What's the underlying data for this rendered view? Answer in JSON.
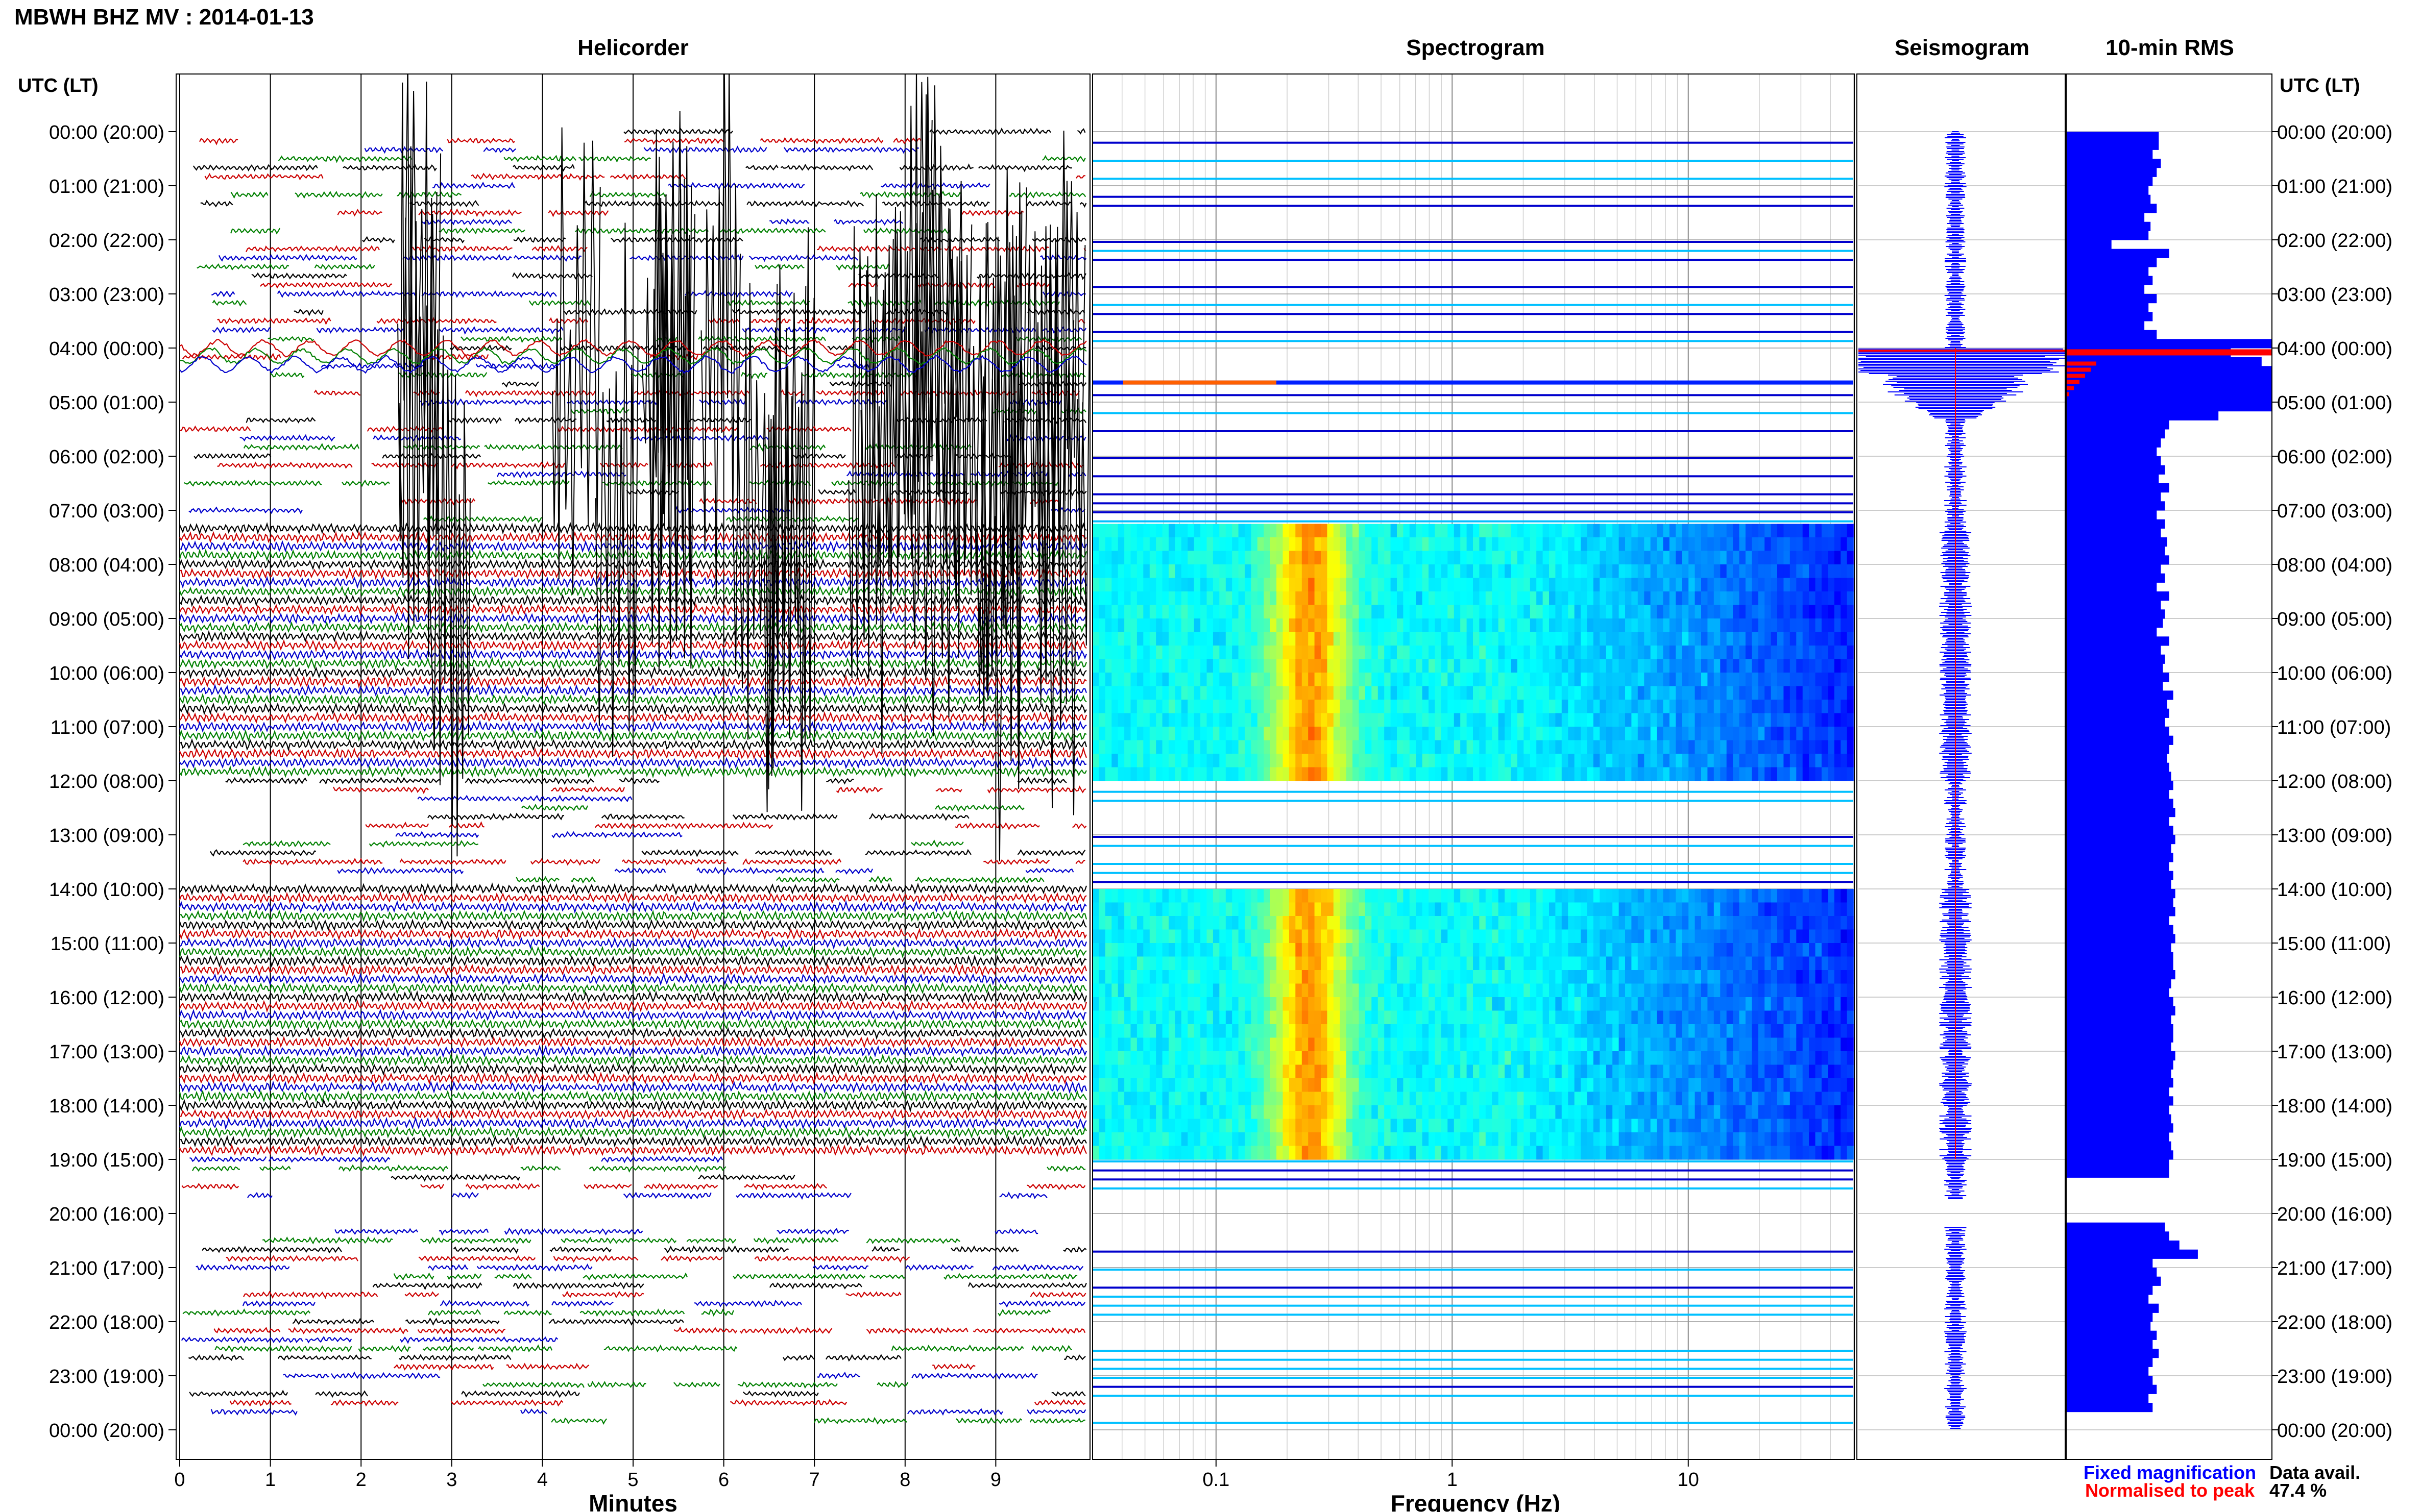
{
  "title": "MBWH BHZ MV : 2014-01-13",
  "panels": {
    "helicorder": "Helicorder",
    "spectrogram": "Spectrogram",
    "seismogram": "Seismogram",
    "rms": "10-min RMS"
  },
  "time_axis_label": "UTC (LT)",
  "hour_labels": [
    "00:00 (20:00)",
    "01:00 (21:00)",
    "02:00 (22:00)",
    "03:00 (23:00)",
    "04:00 (00:00)",
    "05:00 (01:00)",
    "06:00 (02:00)",
    "07:00 (03:00)",
    "08:00 (04:00)",
    "09:00 (05:00)",
    "10:00 (06:00)",
    "11:00 (07:00)",
    "12:00 (08:00)",
    "13:00 (09:00)",
    "14:00 (10:00)",
    "15:00 (11:00)",
    "16:00 (12:00)",
    "17:00 (13:00)",
    "18:00 (14:00)",
    "19:00 (15:00)",
    "20:00 (16:00)",
    "21:00 (17:00)",
    "22:00 (18:00)",
    "23:00 (19:00)",
    "00:00 (20:00)"
  ],
  "minutes_axis": {
    "label": "Minutes",
    "ticks": [
      "0",
      "1",
      "2",
      "3",
      "4",
      "5",
      "6",
      "7",
      "8",
      "9"
    ]
  },
  "frequency_axis": {
    "label": "Frequency (Hz)",
    "ticks": [
      "0.1",
      "1",
      "10"
    ],
    "scale": "log"
  },
  "legend": {
    "fixed": "Fixed magnification",
    "normalised": "Normalised to peak"
  },
  "data_avail": {
    "label": "Data avail.",
    "value": "47.4 %"
  },
  "colors": {
    "trace_cycle": [
      "#000000",
      "#cc0000",
      "#0000cc",
      "#008000"
    ],
    "fixed": "#0000ff",
    "normalised": "#ff0000"
  },
  "chart_data": {
    "type": "heatmap",
    "x_hours_utc": [
      0,
      24
    ],
    "helicorder_minutes_range": [
      0,
      10
    ],
    "frequency_range_hz": [
      0.03,
      50
    ],
    "dense_data_hours": [
      [
        7.25,
        12.0
      ],
      [
        14.0,
        19.0
      ]
    ],
    "gap_hours": [
      [
        19.75,
        20.25
      ]
    ],
    "large_event_hours": [
      [
        3.5,
        8.5
      ]
    ],
    "rms_peak_hour": 4.08,
    "rms_10min_relative": [
      0.45,
      0.45,
      0.42,
      0.46,
      0.44,
      0.42,
      0.4,
      0.41,
      0.44,
      0.38,
      0.41,
      0.4,
      0.22,
      0.5,
      0.44,
      0.4,
      0.42,
      0.38,
      0.44,
      0.4,
      0.42,
      0.38,
      0.44,
      1.0,
      0.8,
      0.95,
      1.0,
      1.0,
      1.0,
      1.0,
      1.0,
      0.74,
      0.5,
      0.48,
      0.46,
      0.44,
      0.46,
      0.48,
      0.45,
      0.5,
      0.46,
      0.48,
      0.44,
      0.48,
      0.46,
      0.49,
      0.48,
      0.5,
      0.46,
      0.48,
      0.44,
      0.5,
      0.46,
      0.48,
      0.47,
      0.44,
      0.5,
      0.46,
      0.48,
      0.47,
      0.5,
      0.47,
      0.52,
      0.49,
      0.5,
      0.48,
      0.5,
      0.52,
      0.5,
      0.49,
      0.5,
      0.51,
      0.52,
      0.5,
      0.52,
      0.53,
      0.5,
      0.52,
      0.53,
      0.51,
      0.52,
      0.5,
      0.52,
      0.51,
      0.53,
      0.52,
      0.53,
      0.5,
      0.52,
      0.53,
      0.51,
      0.52,
      0.52,
      0.53,
      0.51,
      0.5,
      0.52,
      0.53,
      0.51,
      0.52,
      0.52,
      0.51,
      0.53,
      0.52,
      0.51,
      0.52,
      0.5,
      0.52,
      0.5,
      0.51,
      0.52,
      0.5,
      0.51,
      0.52,
      0.5,
      0.5,
      0,
      0,
      0,
      0,
      0,
      0.48,
      0.5,
      0.55,
      0.64,
      0.42,
      0.44,
      0.46,
      0.42,
      0.4,
      0.45,
      0.42,
      0.41,
      0.44,
      0.42,
      0.45,
      0.42,
      0.4,
      0.42,
      0.44,
      0.4,
      0.42
    ]
  }
}
